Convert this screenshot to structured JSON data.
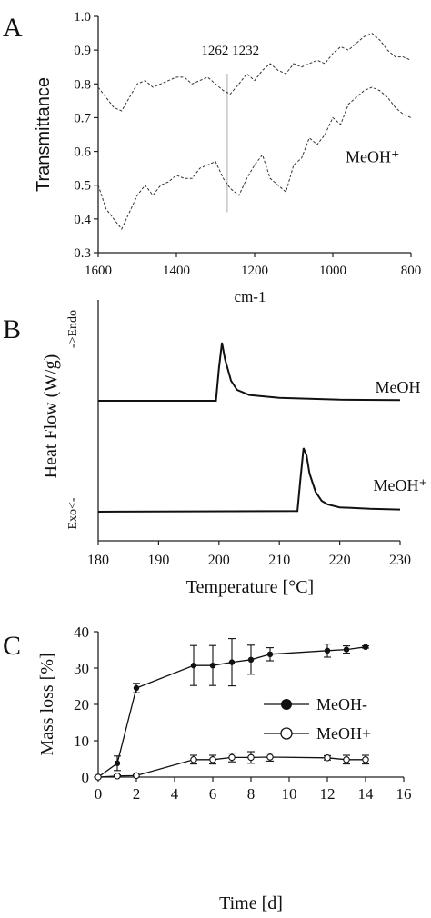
{
  "chart_data": [
    {
      "panel": "A",
      "type": "line",
      "xlabel": "cm-1",
      "ylabel": "Transmittance",
      "xlim": [
        1600,
        800
      ],
      "ylim": [
        0.3,
        1.0
      ],
      "x_ticks": [
        "1600",
        "1400",
        "1200",
        "1000",
        "800"
      ],
      "y_ticks": [
        "0.3",
        "0.4",
        "0.5",
        "0.6",
        "0.7",
        "0.8",
        "0.9",
        "1.0"
      ],
      "annotations": [
        {
          "text": "1262 1232",
          "x": 1262
        },
        {
          "text": "MeOH⁺",
          "x": 940,
          "y": 0.59
        }
      ],
      "marker_line_x": 1270,
      "series": [
        {
          "x": [
            1600,
            1580,
            1560,
            1540,
            1520,
            1500,
            1480,
            1460,
            1440,
            1420,
            1400,
            1380,
            1360,
            1340,
            1320,
            1300,
            1280,
            1262,
            1240,
            1220,
            1200,
            1180,
            1160,
            1140,
            1120,
            1100,
            1080,
            1060,
            1040,
            1020,
            1000,
            980,
            960,
            940,
            920,
            900,
            880,
            860,
            840,
            820,
            800
          ],
          "values": [
            0.79,
            0.76,
            0.73,
            0.72,
            0.76,
            0.8,
            0.81,
            0.79,
            0.8,
            0.81,
            0.82,
            0.82,
            0.8,
            0.81,
            0.82,
            0.8,
            0.78,
            0.77,
            0.8,
            0.83,
            0.81,
            0.84,
            0.86,
            0.84,
            0.83,
            0.86,
            0.85,
            0.86,
            0.87,
            0.86,
            0.89,
            0.91,
            0.9,
            0.92,
            0.94,
            0.95,
            0.93,
            0.9,
            0.88,
            0.88,
            0.87
          ]
        },
        {
          "x": [
            1600,
            1580,
            1560,
            1540,
            1520,
            1500,
            1480,
            1460,
            1440,
            1420,
            1400,
            1380,
            1360,
            1340,
            1320,
            1300,
            1280,
            1262,
            1240,
            1220,
            1200,
            1180,
            1160,
            1140,
            1120,
            1100,
            1080,
            1060,
            1040,
            1020,
            1000,
            980,
            960,
            940,
            920,
            900,
            880,
            860,
            840,
            820,
            800
          ],
          "values": [
            0.5,
            0.43,
            0.4,
            0.37,
            0.42,
            0.47,
            0.5,
            0.47,
            0.5,
            0.51,
            0.53,
            0.52,
            0.52,
            0.55,
            0.56,
            0.57,
            0.52,
            0.49,
            0.47,
            0.52,
            0.56,
            0.59,
            0.52,
            0.5,
            0.48,
            0.56,
            0.58,
            0.64,
            0.62,
            0.65,
            0.7,
            0.68,
            0.74,
            0.76,
            0.78,
            0.79,
            0.78,
            0.76,
            0.73,
            0.71,
            0.7
          ]
        }
      ]
    },
    {
      "panel": "B",
      "type": "line",
      "xlabel": "Temperature [°C]",
      "ylabel": "Heat Flow (W/g)",
      "ylabel_top": "->Endo",
      "ylabel_bottom": "Exo<-",
      "xlim": [
        180,
        230
      ],
      "x_ticks": [
        "180",
        "190",
        "200",
        "210",
        "220",
        "230"
      ],
      "series": [
        {
          "name": "MeOH⁻",
          "x": [
            180,
            199.5,
            200,
            200.5,
            201,
            202,
            203,
            205,
            210,
            220,
            230
          ],
          "values": [
            0,
            0,
            0.9,
            1.6,
            1.15,
            0.55,
            0.3,
            0.16,
            0.08,
            0.03,
            0.02
          ]
        },
        {
          "name": "MeOH⁺",
          "x": [
            180,
            213,
            213.5,
            214,
            214.5,
            215,
            216,
            217,
            218,
            220,
            225,
            230
          ],
          "values": [
            0,
            0.02,
            0.9,
            1.75,
            1.55,
            1.05,
            0.55,
            0.3,
            0.2,
            0.12,
            0.08,
            0.06
          ]
        }
      ]
    },
    {
      "panel": "C",
      "type": "line",
      "xlabel": "Time [d]",
      "ylabel": "Mass loss [%]",
      "xlim": [
        0,
        16
      ],
      "ylim": [
        0,
        40
      ],
      "x_ticks": [
        "0",
        "2",
        "4",
        "6",
        "8",
        "10",
        "12",
        "14",
        "16"
      ],
      "y_ticks": [
        "0",
        "10",
        "20",
        "30",
        "40"
      ],
      "legend": "right",
      "series": [
        {
          "name": "MeOH-",
          "marker": "filled",
          "x": [
            0,
            1,
            2,
            5,
            6,
            7,
            8,
            9,
            12,
            13,
            14
          ],
          "values": [
            0,
            3.8,
            24.5,
            30.7,
            30.7,
            31.6,
            32.3,
            33.8,
            34.8,
            35.1,
            35.8
          ],
          "errors": [
            0,
            2.0,
            1.3,
            5.5,
            5.5,
            6.5,
            4.0,
            1.8,
            1.8,
            1.0,
            0.3
          ]
        },
        {
          "name": "MeOH+",
          "marker": "open",
          "x": [
            0,
            1,
            2,
            5,
            6,
            7,
            8,
            9,
            12,
            13,
            14
          ],
          "values": [
            0,
            0.3,
            0.4,
            4.8,
            4.8,
            5.4,
            5.4,
            5.5,
            5.3,
            4.8,
            4.8
          ],
          "errors": [
            0,
            0.3,
            0.3,
            1.2,
            1.2,
            1.2,
            1.6,
            1.1,
            0.6,
            1.2,
            1.2
          ]
        }
      ]
    }
  ],
  "panels": {
    "a": {
      "letter": "A"
    },
    "b": {
      "letter": "B"
    },
    "c": {
      "letter": "C"
    }
  }
}
